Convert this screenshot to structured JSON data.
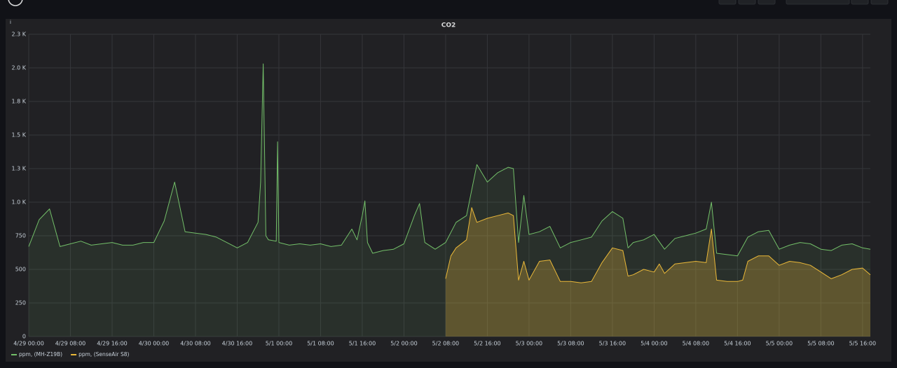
{
  "chart_data": {
    "type": "line",
    "title": "CO2",
    "grid": true,
    "legend": "bottom-left",
    "ylim": [
      0,
      2250
    ],
    "yticks": [
      0,
      250,
      500,
      750,
      {
        "value": 1000,
        "label": "1.0 K"
      },
      {
        "value": 1250,
        "label": "1.3 K"
      },
      {
        "value": 1500,
        "label": "1.5 K"
      },
      {
        "value": 1750,
        "label": "1.8 K"
      },
      {
        "value": 2000,
        "label": "2.0 K"
      },
      {
        "value": 2250,
        "label": "2.3 K"
      }
    ],
    "xlim": [
      "4/29 00:00",
      "5/5 17:30"
    ],
    "xticks": [
      "4/29 00:00",
      "4/29 08:00",
      "4/29 16:00",
      "4/30 00:00",
      "4/30 08:00",
      "4/30 16:00",
      "5/1 00:00",
      "5/1 08:00",
      "5/1 16:00",
      "5/2 00:00",
      "5/2 08:00",
      "5/2 16:00",
      "5/3 00:00",
      "5/3 08:00",
      "5/3 16:00",
      "5/4 00:00",
      "5/4 08:00",
      "5/4 16:00",
      "5/5 00:00",
      "5/5 08:00",
      "5/5 16:00"
    ],
    "series": [
      {
        "name": "ppm, (MH-Z19B)",
        "color": "#73bf69",
        "x": [
          "4/29 00:00",
          "4/29 02:00",
          "4/29 04:00",
          "4/29 06:00",
          "4/29 08:00",
          "4/29 10:00",
          "4/29 12:00",
          "4/29 14:00",
          "4/29 16:00",
          "4/29 18:00",
          "4/29 20:00",
          "4/29 22:00",
          "4/30 00:00",
          "4/30 02:00",
          "4/30 04:00",
          "4/30 06:00",
          "4/30 08:00",
          "4/30 10:00",
          "4/30 12:00",
          "4/30 14:00",
          "4/30 16:00",
          "4/30 18:00",
          "4/30 20:00",
          "4/30 20:30",
          "4/30 21:00",
          "4/30 21:30",
          "4/30 22:00",
          "4/30 23:30",
          "4/30 23:45",
          "5/1 00:00",
          "5/1 02:00",
          "5/1 04:00",
          "5/1 06:00",
          "5/1 08:00",
          "5/1 10:00",
          "5/1 12:00",
          "5/1 14:00",
          "5/1 15:00",
          "5/1 16:00",
          "5/1 16:30",
          "5/1 17:00",
          "5/1 18:00",
          "5/1 20:00",
          "5/1 22:00",
          "5/2 00:00",
          "5/2 02:00",
          "5/2 03:00",
          "5/2 04:00",
          "5/2 06:00",
          "5/2 08:00",
          "5/2 10:00",
          "5/2 12:00",
          "5/2 14:00",
          "5/2 16:00",
          "5/2 18:00",
          "5/2 20:00",
          "5/2 21:00",
          "5/2 22:00",
          "5/2 23:00",
          "5/3 00:00",
          "5/3 02:00",
          "5/3 04:00",
          "5/3 06:00",
          "5/3 08:00",
          "5/3 10:00",
          "5/3 12:00",
          "5/3 14:00",
          "5/3 16:00",
          "5/3 18:00",
          "5/3 19:00",
          "5/3 20:00",
          "5/3 22:00",
          "5/4 00:00",
          "5/4 02:00",
          "5/4 04:00",
          "5/4 06:00",
          "5/4 08:00",
          "5/4 10:00",
          "5/4 11:00",
          "5/4 12:00",
          "5/4 14:00",
          "5/4 16:00",
          "5/4 18:00",
          "5/4 20:00",
          "5/4 22:00",
          "5/5 00:00",
          "5/5 02:00",
          "5/5 04:00",
          "5/5 06:00",
          "5/5 08:00",
          "5/5 10:00",
          "5/5 12:00",
          "5/5 14:00",
          "5/5 16:00",
          "5/5 17:30"
        ],
        "values": [
          670,
          870,
          950,
          670,
          690,
          710,
          680,
          690,
          700,
          680,
          680,
          700,
          700,
          860,
          1150,
          780,
          770,
          760,
          740,
          700,
          660,
          700,
          850,
          1150,
          2030,
          750,
          720,
          710,
          1450,
          700,
          680,
          690,
          680,
          690,
          670,
          680,
          800,
          720,
          900,
          1010,
          700,
          620,
          640,
          650,
          690,
          900,
          990,
          700,
          650,
          700,
          850,
          900,
          1280,
          1150,
          1220,
          1260,
          1250,
          700,
          1050,
          760,
          780,
          820,
          660,
          700,
          720,
          740,
          860,
          930,
          880,
          660,
          700,
          720,
          760,
          650,
          730,
          750,
          770,
          800,
          1000,
          620,
          610,
          600,
          740,
          780,
          790,
          650,
          680,
          700,
          690,
          650,
          640,
          680,
          690,
          660,
          650
        ]
      },
      {
        "name": "ppm, (SenseAir S8)",
        "color": "#eab839",
        "x": [
          "5/2 08:00",
          "5/2 09:00",
          "5/2 10:00",
          "5/2 12:00",
          "5/2 13:00",
          "5/2 14:00",
          "5/2 16:00",
          "5/2 18:00",
          "5/2 20:00",
          "5/2 21:00",
          "5/2 22:00",
          "5/2 23:00",
          "5/3 00:00",
          "5/3 02:00",
          "5/3 04:00",
          "5/3 06:00",
          "5/3 08:00",
          "5/3 10:00",
          "5/3 12:00",
          "5/3 14:00",
          "5/3 16:00",
          "5/3 18:00",
          "5/3 19:00",
          "5/3 20:00",
          "5/3 22:00",
          "5/4 00:00",
          "5/4 01:00",
          "5/4 02:00",
          "5/4 04:00",
          "5/4 06:00",
          "5/4 08:00",
          "5/4 10:00",
          "5/4 11:00",
          "5/4 12:00",
          "5/4 14:00",
          "5/4 16:00",
          "5/4 17:00",
          "5/4 18:00",
          "5/4 20:00",
          "5/4 22:00",
          "5/5 00:00",
          "5/5 02:00",
          "5/5 04:00",
          "5/5 06:00",
          "5/5 08:00",
          "5/5 10:00",
          "5/5 12:00",
          "5/5 14:00",
          "5/5 16:00",
          "5/5 17:30"
        ],
        "values": [
          430,
          600,
          660,
          720,
          960,
          850,
          880,
          900,
          920,
          900,
          420,
          560,
          420,
          560,
          570,
          410,
          410,
          400,
          410,
          550,
          660,
          640,
          450,
          460,
          500,
          480,
          540,
          470,
          540,
          550,
          560,
          550,
          800,
          420,
          410,
          410,
          420,
          560,
          600,
          600,
          530,
          560,
          550,
          530,
          480,
          430,
          460,
          500,
          510,
          460
        ]
      }
    ]
  }
}
